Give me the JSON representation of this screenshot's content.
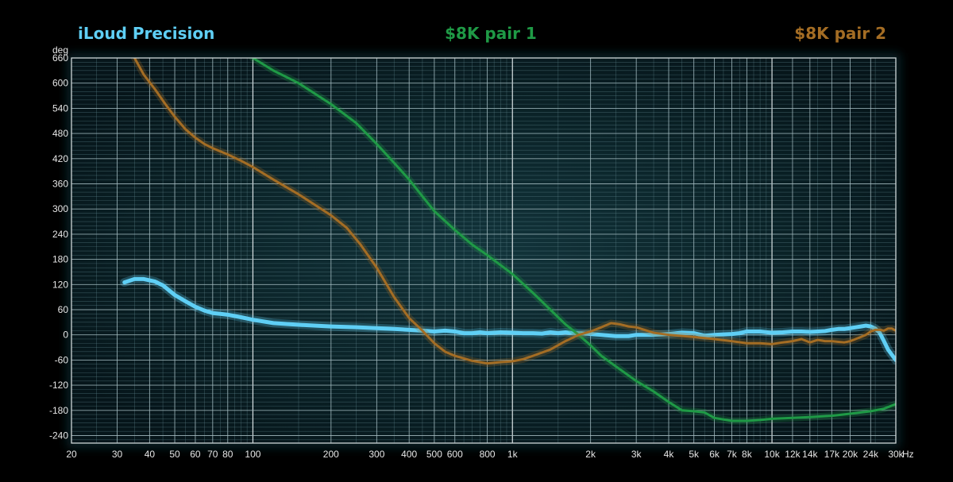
{
  "chart_data": {
    "type": "line",
    "title": "",
    "xlabel": "Hz",
    "ylabel": "deg",
    "x_scale": "log",
    "xlim": [
      20,
      30000
    ],
    "ylim": [
      -258,
      660
    ],
    "grid": true,
    "legend_placement": "top",
    "x_tick_values": [
      20,
      30,
      40,
      50,
      60,
      70,
      80,
      100,
      200,
      300,
      400,
      500,
      600,
      800,
      1000,
      2000,
      3000,
      4000,
      5000,
      6000,
      7000,
      8000,
      10000,
      12000,
      14000,
      17000,
      20000,
      24000,
      30000
    ],
    "x_tick_labels": [
      "20",
      "30",
      "40",
      "50",
      "60",
      "70",
      "80",
      "100",
      "200",
      "300",
      "400",
      "500",
      "600",
      "800",
      "1k",
      "2k",
      "3k",
      "4k",
      "5k",
      "6k",
      "7k",
      "8k",
      "10k",
      "12k",
      "14k",
      "17k",
      "20k",
      "24k",
      "30k"
    ],
    "y_tick_values": [
      660,
      600,
      540,
      480,
      420,
      360,
      300,
      240,
      180,
      120,
      60,
      0,
      -60,
      -120,
      -180,
      -240
    ],
    "y_tick_labels": [
      "660",
      "600",
      "540",
      "480",
      "420",
      "360",
      "300",
      "240",
      "180",
      "120",
      "60",
      "0",
      "-60",
      "-120",
      "-180",
      "-240"
    ],
    "series": [
      {
        "name": "iLoud Precision",
        "color": "#5fcff5",
        "width": 5,
        "x": [
          32,
          35,
          38,
          42,
          45,
          50,
          55,
          60,
          65,
          70,
          75,
          80,
          90,
          100,
          120,
          150,
          200,
          250,
          300,
          350,
          400,
          450,
          500,
          550,
          600,
          650,
          700,
          750,
          800,
          900,
          1000,
          1100,
          1200,
          1300,
          1400,
          1500,
          1600,
          1700,
          1800,
          2000,
          2200,
          2500,
          2800,
          3000,
          3500,
          4000,
          4500,
          5000,
          5500,
          6000,
          6500,
          7000,
          7500,
          8000,
          9000,
          10000,
          11000,
          12000,
          13000,
          14000,
          15000,
          16000,
          17000,
          18000,
          19000,
          20000,
          21000,
          22000,
          23000,
          24000,
          25000,
          26000,
          27000,
          28000,
          29000,
          30000
        ],
        "y": [
          125,
          133,
          133,
          127,
          118,
          95,
          80,
          67,
          58,
          52,
          50,
          48,
          42,
          36,
          28,
          24,
          20,
          18,
          16,
          14,
          12,
          10,
          8,
          10,
          8,
          4,
          4,
          6,
          4,
          6,
          5,
          4,
          4,
          3,
          6,
          4,
          6,
          4,
          4,
          2,
          0,
          -3,
          -3,
          0,
          0,
          2,
          5,
          4,
          -2,
          0,
          1,
          2,
          4,
          8,
          8,
          5,
          6,
          8,
          8,
          7,
          8,
          9,
          12,
          14,
          14,
          16,
          18,
          20,
          22,
          20,
          15,
          5,
          -15,
          -35,
          -48,
          -60
        ]
      },
      {
        "name": "$8K pair 1",
        "color": "#1f9a46",
        "width": 3,
        "x": [
          100,
          120,
          150,
          200,
          250,
          300,
          350,
          400,
          450,
          500,
          600,
          700,
          800,
          1000,
          1200,
          1400,
          1600,
          1800,
          2000,
          2200,
          2500,
          3000,
          3500,
          4000,
          4500,
          5000,
          5500,
          6000,
          7000,
          8000,
          9000,
          10000,
          12000,
          14000,
          17000,
          20000,
          24000,
          27000,
          30000
        ],
        "y": [
          660,
          630,
          600,
          550,
          505,
          455,
          410,
          370,
          330,
          295,
          250,
          215,
          190,
          145,
          100,
          60,
          25,
          0,
          -25,
          -50,
          -75,
          -110,
          -135,
          -160,
          -180,
          -182,
          -185,
          -198,
          -205,
          -205,
          -203,
          -200,
          -198,
          -196,
          -193,
          -188,
          -182,
          -176,
          -165
        ]
      },
      {
        "name": "$8K pair 2",
        "color": "#a46d24",
        "width": 3,
        "x": [
          35,
          38,
          42,
          46,
          50,
          55,
          60,
          65,
          70,
          80,
          90,
          100,
          120,
          150,
          200,
          230,
          260,
          300,
          350,
          400,
          450,
          500,
          550,
          600,
          700,
          800,
          900,
          1000,
          1100,
          1200,
          1400,
          1600,
          1800,
          2000,
          2200,
          2400,
          2600,
          2800,
          3000,
          3500,
          4000,
          5000,
          6000,
          7000,
          8000,
          9000,
          10000,
          11000,
          12000,
          13000,
          14000,
          15000,
          16000,
          17000,
          19000,
          20000,
          21000,
          22000,
          23000,
          24000,
          25000,
          26000,
          27000,
          28000,
          29000,
          30000
        ],
        "y": [
          660,
          620,
          585,
          550,
          520,
          490,
          470,
          455,
          445,
          430,
          415,
          400,
          370,
          335,
          285,
          255,
          215,
          160,
          90,
          40,
          10,
          -20,
          -40,
          -50,
          -62,
          -68,
          -65,
          -63,
          -58,
          -50,
          -35,
          -15,
          0,
          8,
          18,
          28,
          25,
          20,
          18,
          5,
          0,
          -5,
          -10,
          -15,
          -20,
          -20,
          -22,
          -18,
          -15,
          -10,
          -18,
          -12,
          -15,
          -15,
          -18,
          -15,
          -10,
          -5,
          0,
          8,
          12,
          12,
          10,
          15,
          15,
          10
        ]
      }
    ]
  }
}
